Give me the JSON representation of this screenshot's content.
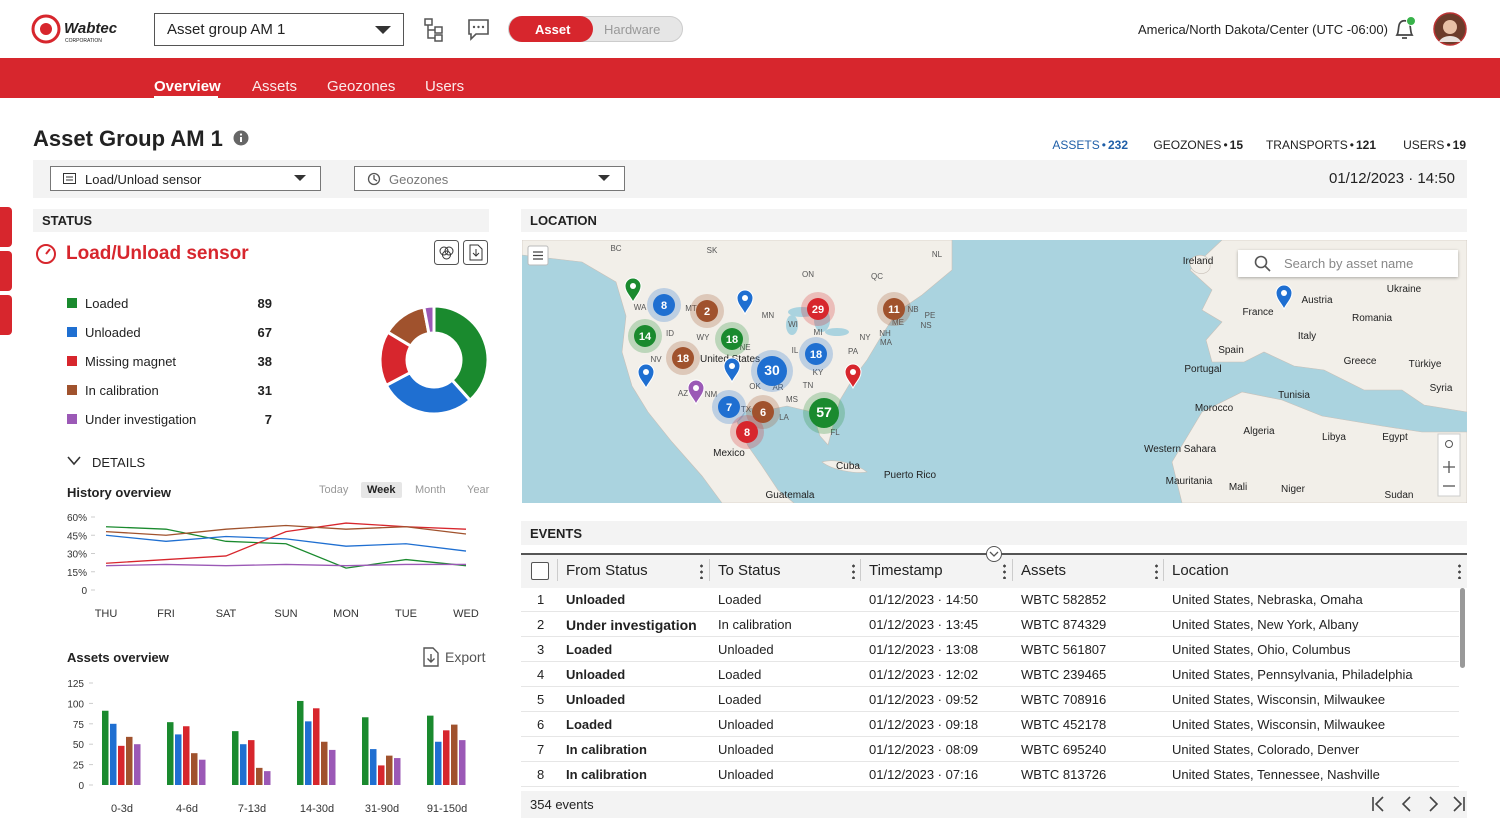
{
  "header": {
    "logo": "Wabtec",
    "logo_sub": "CORPORATION",
    "group_select": "Asset group AM 1",
    "toggle": [
      "Asset",
      "Hardware"
    ],
    "timezone": "America/North Dakota/Center (UTC -06:00)"
  },
  "nav": [
    "Overview",
    "Assets",
    "Geozones",
    "Users"
  ],
  "page": {
    "title": "Asset Group AM 1",
    "stat_separator": "•",
    "stats": [
      {
        "label": "ASSETS",
        "value": 232
      },
      {
        "label": "GEOZONES",
        "value": 15
      },
      {
        "label": "TRANSPORTS",
        "value": 121
      },
      {
        "label": "USERS",
        "value": 19
      }
    ]
  },
  "filters": {
    "sensor": "Load/Unload sensor",
    "geozones": "Geozones",
    "datetime": "01/12/2023 · 14:50"
  },
  "status": {
    "section": "STATUS",
    "title": "Load/Unload sensor",
    "details": "DETAILS",
    "chart_data": {
      "type": "pie",
      "categories": [
        "Loaded",
        "Unloaded",
        "Missing magnet",
        "In calibration",
        "Under investigation"
      ],
      "values": [
        89,
        67,
        38,
        31,
        7
      ],
      "colors": [
        "#1a8a2e",
        "#1f6fd1",
        "#d7262d",
        "#a0522d",
        "#9b59b6"
      ]
    }
  },
  "history": {
    "chart_data": {
      "type": "line",
      "title": "History overview",
      "periods": [
        "Today",
        "Week",
        "Month",
        "Year"
      ],
      "selected_period": "Week",
      "categories": [
        "THU",
        "FRI",
        "SAT",
        "SUN",
        "MON",
        "TUE",
        "WED"
      ],
      "ylim": [
        0,
        60
      ],
      "yticks": [
        0,
        {
          "value": 15,
          "label": "15%"
        },
        {
          "value": 30,
          "label": "30%"
        },
        {
          "value": 45,
          "label": "45%"
        },
        {
          "value": 60,
          "label": "60%"
        }
      ],
      "series": [
        {
          "color": "#1a8a2e",
          "values": [
            52,
            50,
            40,
            38,
            18,
            25,
            20
          ]
        },
        {
          "color": "#1f6fd1",
          "values": [
            45,
            40,
            44,
            42,
            36,
            38,
            32
          ]
        },
        {
          "color": "#d7262d",
          "values": [
            22,
            25,
            28,
            48,
            55,
            52,
            50
          ]
        },
        {
          "color": "#a0522d",
          "values": [
            48,
            45,
            50,
            53,
            50,
            52,
            46
          ]
        },
        {
          "color": "#9b59b6",
          "values": [
            20,
            21,
            20,
            21,
            20,
            21,
            21
          ]
        }
      ]
    }
  },
  "assets_overview": {
    "chart_data": {
      "type": "bar",
      "title": "Assets overview",
      "export": "Export",
      "categories": [
        "0-3d",
        "4-6d",
        "7-13d",
        "14-30d",
        "31-90d",
        "91-150d"
      ],
      "ylim": [
        0,
        125
      ],
      "yticks": [
        0,
        25,
        50,
        75,
        100,
        125
      ],
      "series": [
        {
          "color": "#1a8a2e",
          "values": [
            91,
            77,
            66,
            103,
            83,
            85
          ]
        },
        {
          "color": "#1f6fd1",
          "values": [
            75,
            62,
            50,
            78,
            44,
            53
          ]
        },
        {
          "color": "#d7262d",
          "values": [
            48,
            72,
            55,
            94,
            24,
            67
          ]
        },
        {
          "color": "#a0522d",
          "values": [
            59,
            39,
            21,
            53,
            36,
            74
          ]
        },
        {
          "color": "#9b59b6",
          "values": [
            50,
            31,
            17,
            43,
            33,
            55
          ]
        }
      ]
    }
  },
  "location": {
    "section": "LOCATION",
    "search_placeholder": "Search by asset name",
    "labels": [
      "BC",
      "SK",
      "NL",
      "ON",
      "QC",
      "WA",
      "MT",
      "MN",
      "WI",
      "MI",
      "NY",
      "ID",
      "WY",
      "NE",
      "IL",
      "PA",
      "NV",
      "United States",
      "KY",
      "OK",
      "AR",
      "TN",
      "AZ",
      "NM",
      "MS",
      "TX",
      "LA",
      "FL",
      "NH",
      "MA",
      "ME",
      "NB",
      "PE",
      "NS",
      "Mexico",
      "Cuba",
      "Puerto Rico",
      "Guatemala",
      "Ireland",
      "France",
      "Spain",
      "Portugal",
      "Italy",
      "Austria",
      "Ukraine",
      "Romania",
      "Greece",
      "Türkiye",
      "Syria",
      "Morocco",
      "Tunisia",
      "Algeria",
      "Libya",
      "Egypt",
      "Western Sahara",
      "Mauritania",
      "Mali",
      "Niger",
      "Sudan"
    ],
    "clusters": [
      {
        "value": 8,
        "color": "#1f6fd1"
      },
      {
        "value": 2,
        "color": "#a0522d"
      },
      {
        "value": 29,
        "color": "#d7262d"
      },
      {
        "value": 11,
        "color": "#a0522d"
      },
      {
        "value": 14,
        "color": "#1a8a2e"
      },
      {
        "value": 18,
        "color": "#1a8a2e"
      },
      {
        "value": 18,
        "color": "#a0522d"
      },
      {
        "value": 18,
        "color": "#1f6fd1"
      },
      {
        "value": 30,
        "color": "#1f6fd1"
      },
      {
        "value": 7,
        "color": "#1f6fd1"
      },
      {
        "value": 6,
        "color": "#a0522d"
      },
      {
        "value": 57,
        "color": "#1a8a2e"
      },
      {
        "value": 8,
        "color": "#d7262d"
      }
    ]
  },
  "events": {
    "section": "EVENTS",
    "columns": [
      "From Status",
      "To Status",
      "Timestamp",
      "Assets",
      "Location"
    ],
    "rows": [
      [
        1,
        "Unloaded",
        "Loaded",
        "01/12/2023 · 14:50",
        "WBTC 582852",
        "United States, Nebraska, Omaha"
      ],
      [
        2,
        "Under investigation",
        "In calibration",
        "01/12/2023 · 13:45",
        "WBTC 874329",
        "United States, New York, Albany"
      ],
      [
        3,
        "Loaded",
        "Unloaded",
        "01/12/2023 · 13:08",
        "WBTC 561807",
        "United States, Ohio, Columbus"
      ],
      [
        4,
        "Unloaded",
        "Loaded",
        "01/12/2023 · 12:02",
        "WBTC 239465",
        "United States, Pennsylvania, Philadelphia"
      ],
      [
        5,
        "Unloaded",
        "Loaded",
        "01/12/2023 · 09:52",
        "WBTC 708916",
        "United States, Wisconsin, Milwaukee"
      ],
      [
        6,
        "Loaded",
        "Unloaded",
        "01/12/2023 · 09:18",
        "WBTC 452178",
        "United States, Wisconsin, Milwaukee"
      ],
      [
        7,
        "In calibration",
        "Unloaded",
        "01/12/2023 · 08:09",
        "WBTC 695240",
        "United States, Colorado, Denver"
      ],
      [
        8,
        "In calibration",
        "Unloaded",
        "01/12/2023 · 07:16",
        "WBTC 813726",
        "United States, Tennessee, Nashville"
      ]
    ],
    "total": 354,
    "total_label": "events"
  }
}
